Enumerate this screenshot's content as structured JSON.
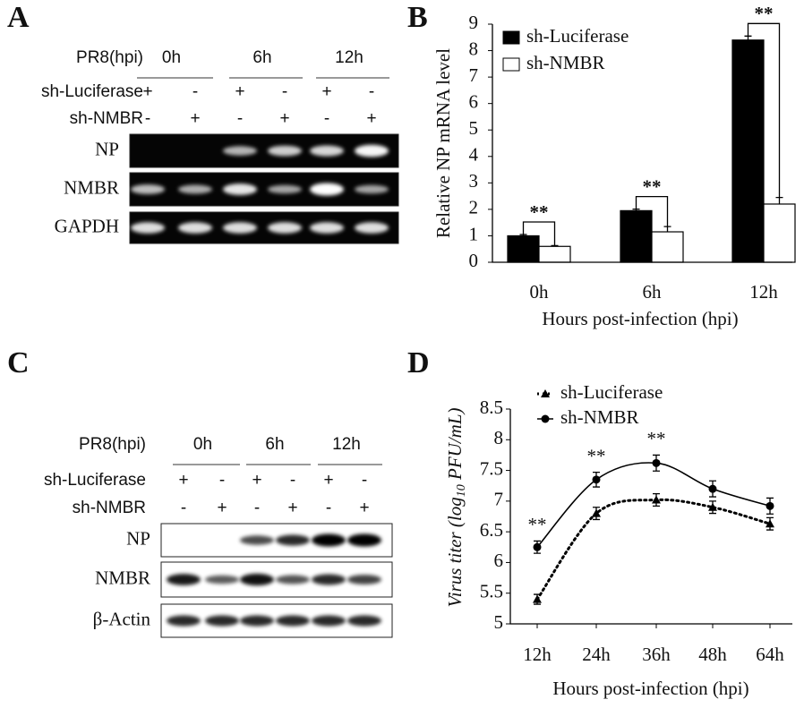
{
  "gel_a": {
    "panel_label": "A",
    "time_label": "PR8(hpi)",
    "times": [
      "0h",
      "6h",
      "12h"
    ],
    "rows": [
      {
        "label": "sh-Luciferase",
        "signs": [
          "+",
          "-",
          "+",
          "-",
          "+",
          "-"
        ]
      },
      {
        "label": "sh-NMBR",
        "signs": [
          "-",
          "+",
          "-",
          "+",
          "-",
          "+"
        ]
      }
    ],
    "bands": [
      "NP",
      "NMBR",
      "GAPDH"
    ]
  },
  "gel_c": {
    "panel_label": "C",
    "time_label": "PR8(hpi)",
    "times": [
      "0h",
      "6h",
      "12h"
    ],
    "rows": [
      {
        "label": "sh-Luciferase",
        "signs": [
          "+",
          "-",
          "+",
          "-",
          "+",
          "-"
        ]
      },
      {
        "label": "sh-NMBR",
        "signs": [
          "-",
          "+",
          "-",
          "+",
          "-",
          "+"
        ]
      }
    ],
    "bands": [
      "NP",
      "NMBR",
      "β-Actin"
    ]
  },
  "chart_data": [
    {
      "type": "bar",
      "panel_label": "B",
      "y_label": "Relative NP mRNA level",
      "x_label": "Hours post-infection (hpi)",
      "categories": [
        "0h",
        "6h",
        "12h"
      ],
      "series": [
        {
          "name": "sh-Luciferase",
          "color": "#000000",
          "values": [
            1,
            1.95,
            8.4
          ],
          "errors": [
            0.05,
            0.06,
            0.15
          ]
        },
        {
          "name": "sh-NMBR",
          "color": "#ffffff",
          "values": [
            0.6,
            1.15,
            2.2
          ],
          "errors": [
            0.03,
            0.2,
            0.25
          ]
        }
      ],
      "annotations": [
        "**",
        "**",
        "**"
      ],
      "ylim": [
        0,
        9
      ],
      "yticks": [
        0,
        1,
        2,
        3,
        4,
        5,
        6,
        7,
        8,
        9
      ],
      "legend": "upper-left"
    },
    {
      "type": "line",
      "panel_label": "D",
      "y_label_parts": [
        "Virus titer (log",
        "10",
        " PFU/mL)"
      ],
      "x_label": "Hours post-infection (hpi)",
      "categories": [
        "12h",
        "24h",
        "36h",
        "48h",
        "64h"
      ],
      "series": [
        {
          "name": "sh-Luciferase",
          "color": "#000000",
          "line_style": "dotted",
          "marker": "triangle",
          "values": [
            5.4,
            6.8,
            7.02,
            6.9,
            6.63
          ],
          "errors": [
            0.08,
            0.1,
            0.1,
            0.1,
            0.1
          ]
        },
        {
          "name": "sh-NMBR",
          "color": "#000000",
          "line_style": "solid",
          "marker": "circle",
          "values": [
            6.25,
            7.35,
            7.62,
            7.2,
            6.92
          ],
          "errors": [
            0.1,
            0.12,
            0.13,
            0.13,
            0.13
          ]
        }
      ],
      "annotations": [
        "**",
        "**",
        "**",
        null,
        null
      ],
      "ylim": [
        5,
        8.5
      ],
      "yticks": [
        5,
        5.5,
        6,
        6.5,
        7,
        7.5,
        8,
        8.5
      ],
      "legend": "upper-left"
    }
  ]
}
